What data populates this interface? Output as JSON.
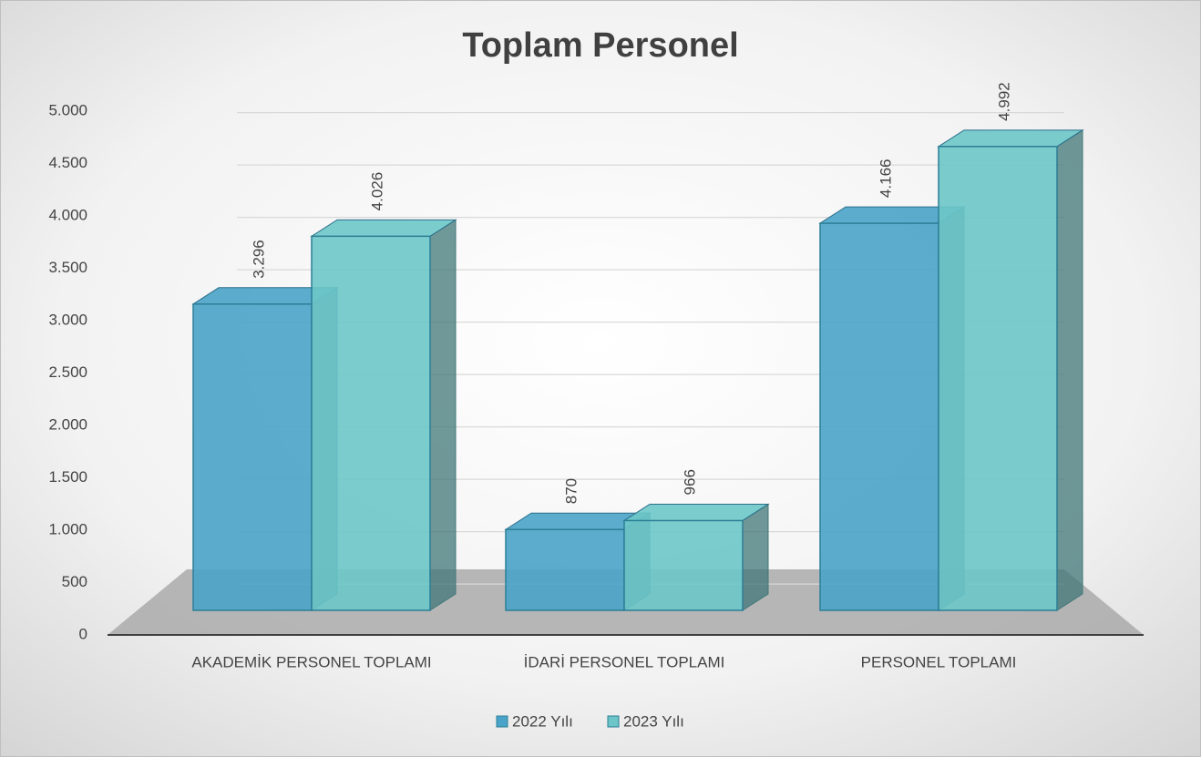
{
  "chart_data": {
    "type": "bar3d",
    "title": "Toplam Personel",
    "categories": [
      "AKADEMİK PERSONEL TOPLAMI",
      "İDARİ PERSONEL TOPLAMI",
      "PERSONEL TOPLAMI"
    ],
    "series": [
      {
        "name": "2022 Yılı",
        "color": "#4aa3c9",
        "values": [
          3296,
          870,
          4166
        ],
        "value_labels": [
          "3.296",
          "870",
          "4.166"
        ]
      },
      {
        "name": "2023 Yılı",
        "color": "#6cc6c8",
        "values": [
          4026,
          966,
          4992
        ],
        "value_labels": [
          "4.026",
          "966",
          "4.992"
        ]
      }
    ],
    "ylim": [
      0,
      5000
    ],
    "yticks": [
      0,
      500,
      {
        "value": 1000,
        "label": "1.000"
      },
      {
        "value": 1500,
        "label": "1.500"
      },
      {
        "value": 2000,
        "label": "2.000"
      },
      {
        "value": 2500,
        "label": "2.500"
      },
      {
        "value": 3000,
        "label": "3.000"
      },
      {
        "value": 3500,
        "label": "3.500"
      },
      {
        "value": 4000,
        "label": "4.000"
      },
      {
        "value": 4500,
        "label": "4.500"
      },
      {
        "value": 5000,
        "label": "5.000"
      }
    ],
    "grid": true,
    "legend": "bottom"
  }
}
